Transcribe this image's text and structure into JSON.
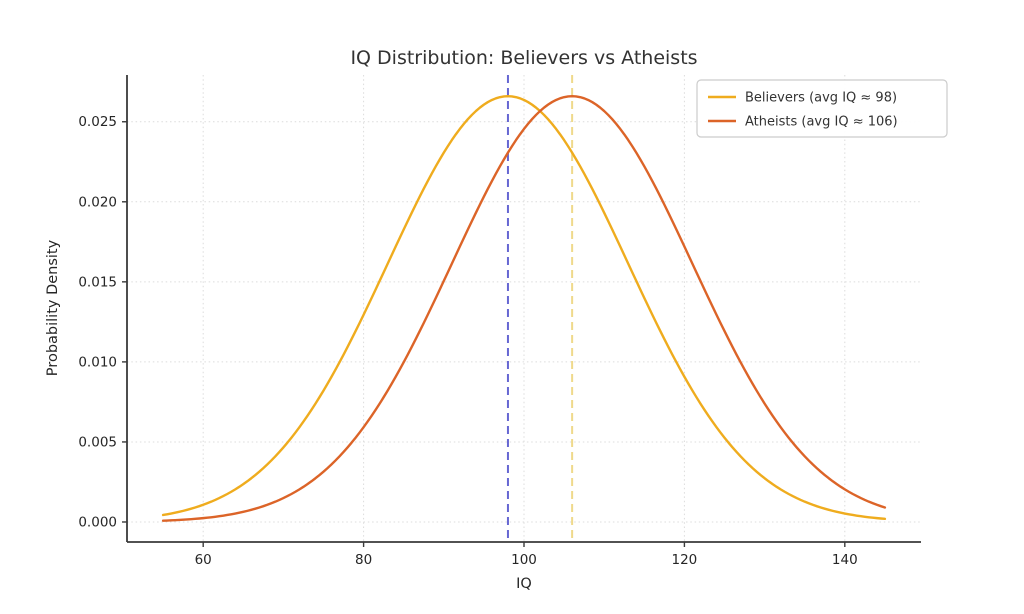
{
  "title": "IQ Distribution: Believers vs Atheists",
  "chart_data": {
    "type": "line",
    "title": "IQ Distribution: Believers vs Atheists",
    "xlabel": "IQ",
    "ylabel": "Probability Density",
    "xlim": [
      50.5,
      149.5
    ],
    "ylim": [
      -0.00125,
      0.02792
    ],
    "x_ticks": [
      60,
      80,
      100,
      120,
      140
    ],
    "y_ticks": [
      0.0,
      0.005,
      0.01,
      0.015,
      0.02,
      0.025
    ],
    "y_tick_decimals": 3,
    "grid": true,
    "grid_style": "dotted",
    "legend_position": "upper right",
    "series": [
      {
        "name": "Believers (avg IQ ≈ 98)",
        "distribution": "normal",
        "mean": 98,
        "sigma": 15,
        "peak_density": 0.0266,
        "x_range": [
          55,
          145
        ],
        "color": "#EFAC1E"
      },
      {
        "name": "Atheists (avg IQ ≈ 106)",
        "distribution": "normal",
        "mean": 106,
        "sigma": 15,
        "peak_density": 0.0266,
        "x_range": [
          55,
          145
        ],
        "color": "#DC6428"
      }
    ],
    "vlines": [
      {
        "x": 98,
        "color": "#6667D2",
        "style": "dashed"
      },
      {
        "x": 106,
        "color": "#EFD98B",
        "style": "dashed"
      }
    ]
  },
  "colors": {
    "background": "#ffffff",
    "spine": "#3a3a3a",
    "grid": "#dcdcdc",
    "tick_text": "#262626",
    "legend_border": "#cccccc",
    "legend_bg": "#ffffff"
  }
}
